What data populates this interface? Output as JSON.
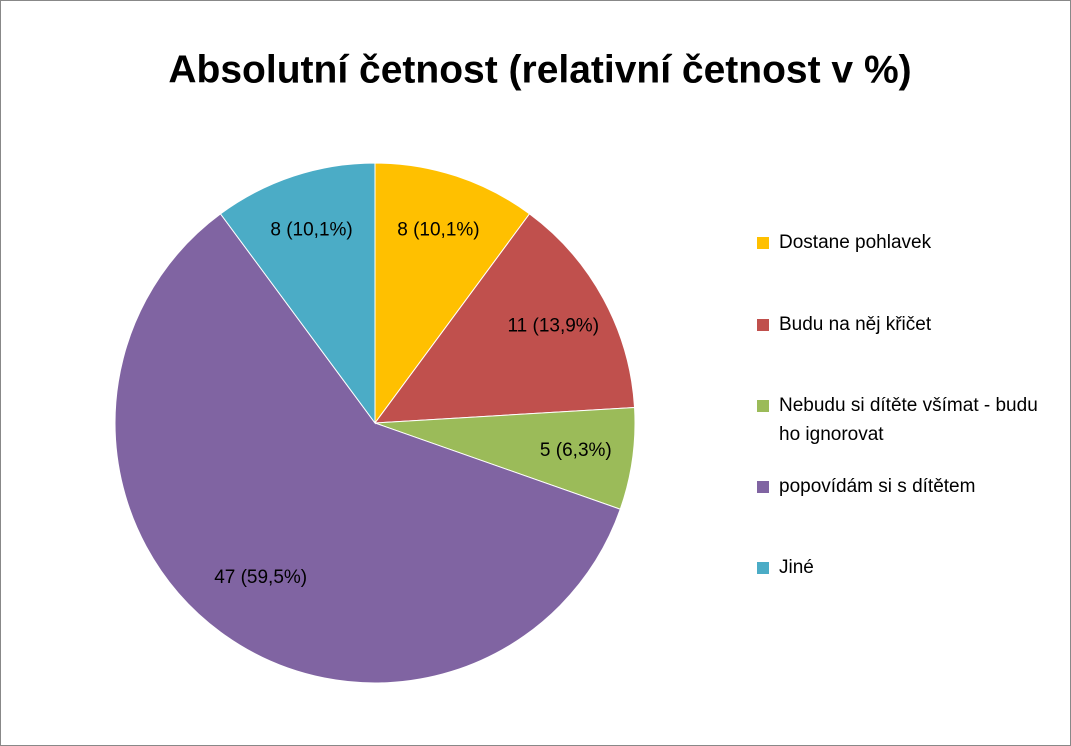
{
  "chart_data": {
    "type": "pie",
    "title": "Absolutní četnost (relativní četnost v %)",
    "categories": [
      "Dostane pohlavek",
      "Budu na něj křičet",
      "Nebudu si dítěte všímat - budu ho ignorovat",
      "popovídám si s dítětem",
      "Jiné"
    ],
    "values": [
      8,
      11,
      5,
      47,
      8
    ],
    "value_labels": [
      "8 (10,1%)",
      "11 (13,9%)",
      "5 (6,3%)",
      "47 (59,5%)",
      "8 (10,1%)"
    ],
    "colors": [
      "#ffc000",
      "#c0504d",
      "#9bbb59",
      "#8064a2",
      "#4bacc6"
    ],
    "legend": "right"
  }
}
